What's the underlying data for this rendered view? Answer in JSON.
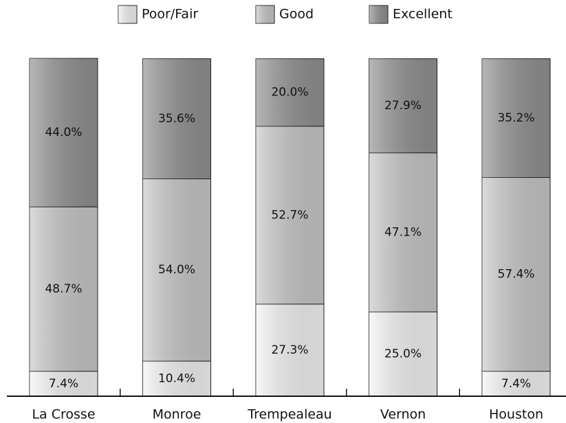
{
  "chart_data": {
    "type": "stacked_bar",
    "categories": [
      "La Crosse",
      "Monroe",
      "Trempealeau",
      "Vernon",
      "Houston"
    ],
    "series": [
      {
        "name": "Poor/Fair",
        "color": "#f4f4f4",
        "values": [
          7.4,
          10.4,
          27.3,
          25.0,
          7.4
        ],
        "value_labels": [
          "7.4%",
          "10.4%",
          "27.3%",
          "25.0%",
          "7.4%"
        ]
      },
      {
        "name": "Good",
        "color": "#c8c8c8",
        "values": [
          48.7,
          54.0,
          52.7,
          47.1,
          57.4
        ],
        "value_labels": [
          "48.7%",
          "54.0%",
          "52.7%",
          "47.1%",
          "57.4%"
        ]
      },
      {
        "name": "Excellent",
        "color": "#919191",
        "values": [
          44.0,
          35.6,
          20.0,
          27.9,
          35.2
        ],
        "value_labels": [
          "44.0%",
          "35.6%",
          "20.0%",
          "27.9%",
          "35.2%"
        ]
      }
    ],
    "legend": "top"
  }
}
